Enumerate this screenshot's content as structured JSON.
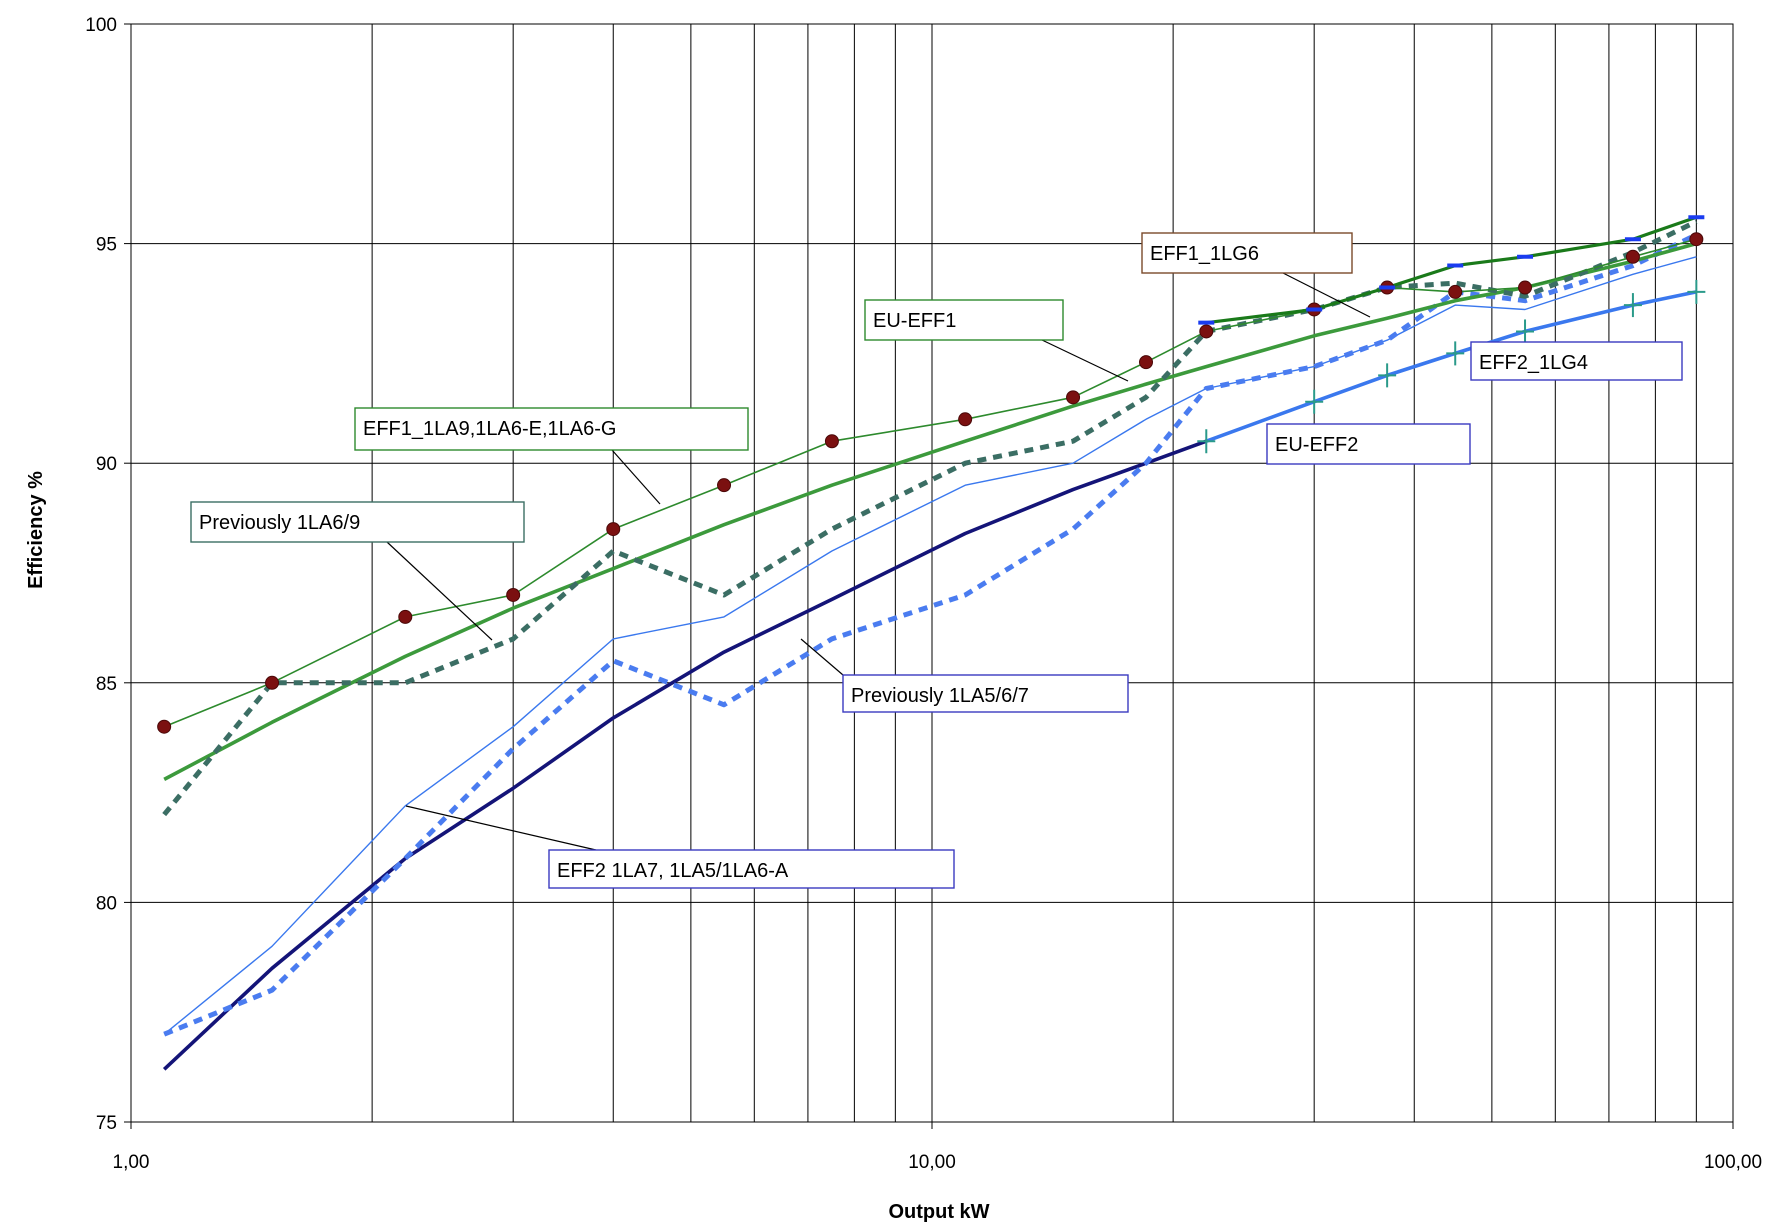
{
  "chart_data": {
    "type": "line",
    "title": "",
    "xlabel": "Output kW",
    "ylabel": "Efficiency %",
    "x_scale": "log",
    "xlim": [
      1,
      100
    ],
    "ylim": [
      75,
      100
    ],
    "grid": true,
    "x_ticks": [
      1,
      10,
      100
    ],
    "x_tick_labels": [
      "1,00",
      "10,00",
      "100,00"
    ],
    "y_ticks": [
      75,
      80,
      85,
      90,
      95,
      100
    ],
    "y_tick_labels": [
      "75",
      "80",
      "85",
      "90",
      "95",
      "100"
    ],
    "series": [
      {
        "name": "EFF1_1LA9,1LA6-E,1LA6-G",
        "color": "#2d8a2d",
        "style": "thin-line-with-dots",
        "marker_color": "#7b1010",
        "x": [
          1.1,
          1.5,
          2.2,
          3,
          4,
          5.5,
          7.5,
          11,
          15,
          18.5,
          22,
          30,
          37,
          45,
          55,
          75,
          90
        ],
        "y": [
          84.0,
          85.0,
          86.5,
          87.0,
          88.5,
          89.5,
          90.5,
          91.0,
          91.5,
          92.3,
          93.0,
          93.5,
          94.0,
          93.9,
          94.0,
          94.7,
          95.1
        ]
      },
      {
        "name": "EU-EFF1",
        "color": "#3c9a3c",
        "style": "thick-line",
        "x": [
          1.1,
          1.5,
          2.2,
          3,
          4,
          5.5,
          7.5,
          11,
          15,
          18.5,
          22,
          30,
          37,
          45,
          55,
          75,
          90
        ],
        "y": [
          82.8,
          84.1,
          85.6,
          86.7,
          87.6,
          88.6,
          89.5,
          90.5,
          91.3,
          91.8,
          92.2,
          92.9,
          93.3,
          93.7,
          94.0,
          94.6,
          95.0
        ]
      },
      {
        "name": "Previously 1LA6/9",
        "color": "#3b6e64",
        "style": "dashed-thick",
        "x": [
          1.1,
          1.5,
          2.2,
          3,
          4,
          5.5,
          7.5,
          11,
          15,
          18.5,
          22,
          30,
          37,
          45,
          55,
          75,
          90
        ],
        "y": [
          82.0,
          85.0,
          85.0,
          86.0,
          88.0,
          87.0,
          88.5,
          90.0,
          90.5,
          91.5,
          93.0,
          93.5,
          94.0,
          94.1,
          93.8,
          94.8,
          95.5
        ]
      },
      {
        "name": "EFF1_1LG6",
        "color": "#1a7a1a",
        "style": "line-with-blue-caps",
        "x": [
          22,
          30,
          37,
          45,
          55,
          75,
          90
        ],
        "y": [
          93.2,
          93.5,
          94.0,
          94.5,
          94.7,
          95.1,
          95.6
        ]
      },
      {
        "name": "EFF2 1LA7, 1LA5/1LA6-A",
        "color": "#3a78ee",
        "style": "thin-line",
        "x": [
          1.1,
          1.5,
          2.2,
          3,
          4,
          5.5,
          7.5,
          11,
          15,
          18.5,
          22,
          30,
          37,
          45,
          55,
          75,
          90
        ],
        "y": [
          77.0,
          79.0,
          82.2,
          84.0,
          86.0,
          86.5,
          88.0,
          89.5,
          90.0,
          91.0,
          91.7,
          92.2,
          92.8,
          93.6,
          93.5,
          94.3,
          94.7
        ]
      },
      {
        "name": "Previously 1LA5/6/7",
        "color": "#4a7cf0",
        "style": "dashed-thick",
        "x": [
          1.1,
          1.5,
          2.2,
          3,
          4,
          5.5,
          7.5,
          11,
          15,
          18.5,
          22,
          30,
          37,
          45,
          55,
          75,
          90
        ],
        "y": [
          77.0,
          78.0,
          81.0,
          83.5,
          85.5,
          84.5,
          86.0,
          87.0,
          88.5,
          90.0,
          91.7,
          92.2,
          92.8,
          93.9,
          93.7,
          94.5,
          95.2
        ]
      },
      {
        "name": "EU-EFF2",
        "color": "#141478",
        "style": "thick-line",
        "x": [
          1.1,
          1.5,
          2.2,
          3,
          4,
          5.5,
          7.5,
          11,
          15,
          18.5,
          22
        ],
        "y": [
          76.2,
          78.5,
          81.0,
          82.6,
          84.2,
          85.7,
          86.9,
          88.4,
          89.4,
          90.0,
          90.5
        ]
      },
      {
        "name": "EFF2_1LG4",
        "color": "#3a78ee",
        "style": "thick-line-with-teal-crosses",
        "marker_color": "#2a9a8a",
        "x": [
          22,
          30,
          37,
          45,
          55,
          75,
          90
        ],
        "y": [
          90.5,
          91.4,
          92.0,
          92.5,
          93.0,
          93.6,
          93.9
        ]
      }
    ],
    "callouts": [
      {
        "text": "EFF1_1LG6",
        "border": "#7a4a2a"
      },
      {
        "text": "EU-EFF1",
        "border": "#2d8a2d"
      },
      {
        "text": "EFF1_1LA9,1LA6-E,1LA6-G",
        "border": "#2d8a2d"
      },
      {
        "text": "Previously 1LA6/9",
        "border": "#3b6e64"
      },
      {
        "text": "EFF2_1LG4",
        "border": "#3a3ac0"
      },
      {
        "text": "EU-EFF2",
        "border": "#3a3ac0"
      },
      {
        "text": "Previously 1LA5/6/7",
        "border": "#3a3ac0"
      },
      {
        "text": "EFF2 1LA7, 1LA5/1LA6-A",
        "border": "#3a3ac0"
      }
    ]
  }
}
